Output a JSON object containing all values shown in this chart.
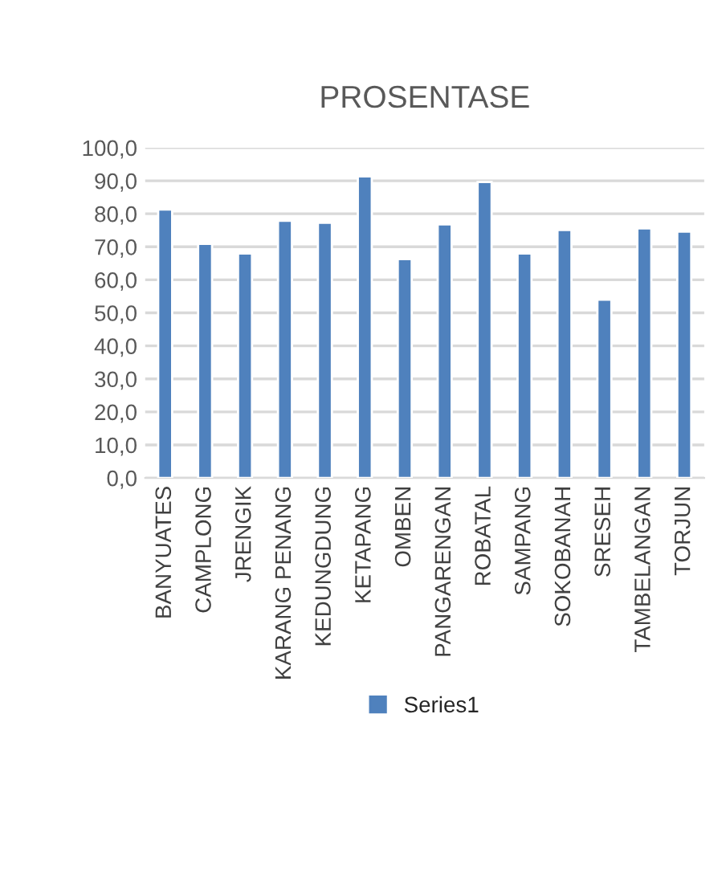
{
  "chart_data": {
    "type": "bar",
    "title": "PROSENTASE",
    "categories": [
      "BANYUATES",
      "CAMPLONG",
      "JRENGIK",
      "KARANG PENANG",
      "KEDUNGDUNG",
      "KETAPANG",
      "OMBEN",
      "PANGARENGAN",
      "ROBATAL",
      "SAMPANG",
      "SOKOBANAH",
      "SRESEH",
      "TAMBELANGAN",
      "TORJUN"
    ],
    "series": [
      {
        "name": "Series1",
        "color": "#4f81bd",
        "values": [
          81.3,
          70.9,
          68.0,
          77.9,
          77.3,
          91.3,
          66.3,
          76.8,
          89.6,
          68.0,
          75.1,
          54.0,
          75.6,
          74.6
        ]
      }
    ],
    "ylim": [
      0,
      100
    ],
    "yticks": [
      {
        "value": 0,
        "label": "0,0"
      },
      {
        "value": 10,
        "label": "10,0"
      },
      {
        "value": 20,
        "label": "20,0"
      },
      {
        "value": 30,
        "label": "30,0"
      },
      {
        "value": 40,
        "label": "40,0"
      },
      {
        "value": 50,
        "label": "50,0"
      },
      {
        "value": 60,
        "label": "60,0"
      },
      {
        "value": 70,
        "label": "70,0"
      },
      {
        "value": 80,
        "label": "80,0"
      },
      {
        "value": 90,
        "label": "90,0"
      },
      {
        "value": 100,
        "label": "100,0"
      }
    ],
    "grid": "y",
    "legend": "bottom"
  }
}
